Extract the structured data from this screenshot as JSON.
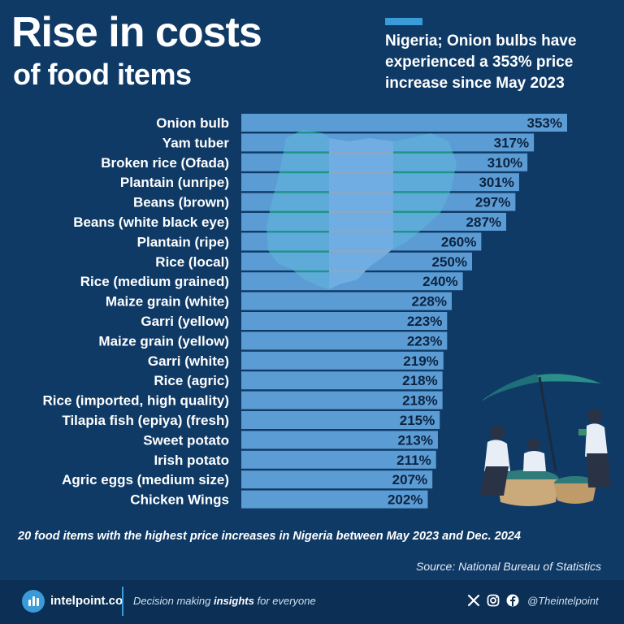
{
  "header": {
    "title_line1": "Rise in costs",
    "title_line2": "of food items",
    "subtitle": "Nigeria; Onion bulbs have experienced a 353% price increase since May 2023"
  },
  "chart_data": {
    "type": "bar",
    "orientation": "horizontal",
    "categories": [
      "Onion bulb",
      "Yam tuber",
      "Broken rice (Ofada)",
      "Plantain (unripe)",
      "Beans (brown)",
      "Beans (white black eye)",
      "Plantain (ripe)",
      "Rice (local)",
      "Rice (medium grained)",
      "Maize grain (white)",
      "Garri (yellow)",
      "Maize grain (yellow)",
      "Garri (white)",
      "Rice (agric)",
      "Rice (imported, high quality)",
      "Tilapia fish (epiya) (fresh)",
      "Sweet potato",
      "Irish potato",
      "Agric eggs (medium size)",
      "Chicken Wings"
    ],
    "values": [
      353,
      317,
      310,
      301,
      297,
      287,
      260,
      250,
      240,
      228,
      223,
      223,
      219,
      218,
      218,
      215,
      213,
      211,
      207,
      202
    ],
    "value_labels": [
      "353%",
      "317%",
      "310%",
      "301%",
      "297%",
      "287%",
      "260%",
      "250%",
      "240%",
      "228%",
      "223%",
      "223%",
      "219%",
      "218%",
      "218%",
      "215%",
      "213%",
      "211%",
      "207%",
      "202%"
    ],
    "unit": "%",
    "xlim": [
      0,
      353
    ],
    "bar_color": "#6aaee8",
    "grid": false
  },
  "caption": "20 food items with the highest price increases in Nigeria between May 2023 and Dec. 2024",
  "source": "Source: National Bureau of Statistics",
  "footer": {
    "brand": "intelpoint.co",
    "tagline_pre": "Decision making ",
    "tagline_bold": "insights",
    "tagline_post": " for everyone",
    "handle": "@Theintelpoint",
    "icons": [
      "x-icon",
      "instagram-icon",
      "facebook-icon"
    ]
  },
  "colors": {
    "background": "#0f3a66",
    "footer": "#0b2f55",
    "accent": "#3b9ad8",
    "bar": "#6aaee8",
    "map_green": "#1f9e8c"
  }
}
